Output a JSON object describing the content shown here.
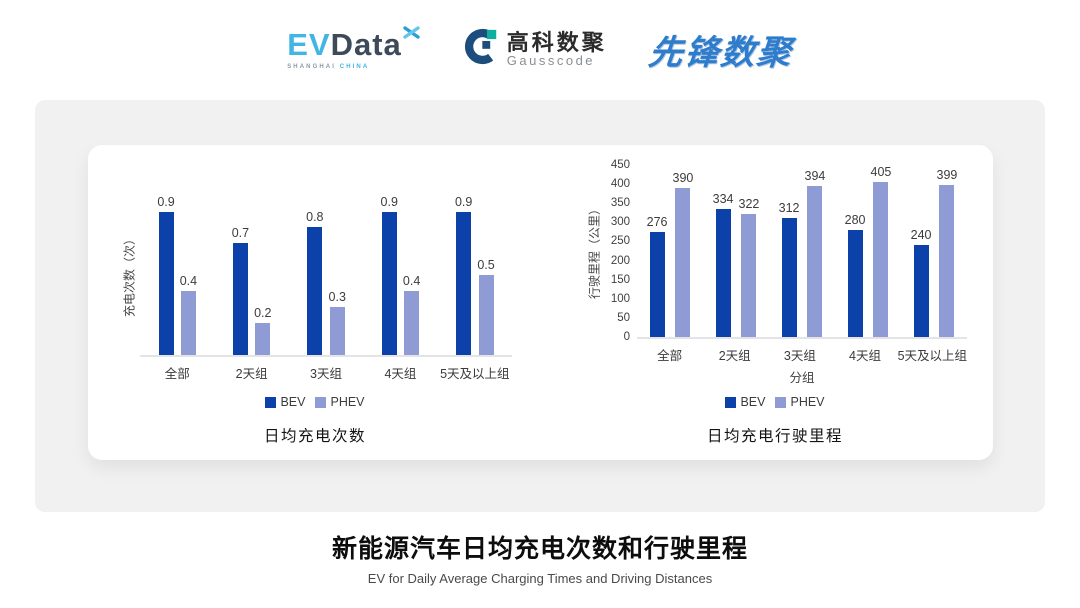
{
  "header": {
    "evdata": {
      "ev": "EV",
      "data": "Data",
      "tagline_left": "SHANGHAI",
      "tagline_right": "CHINA"
    },
    "gausscode": {
      "cn": "高科数聚",
      "en": "Gausscode"
    },
    "xianfeng": {
      "text": "先锋数聚"
    }
  },
  "chart_data": [
    {
      "type": "bar",
      "title": "日均充电次数",
      "xlabel": "",
      "ylabel": "充电次数（次）",
      "categories": [
        "全部",
        "2天组",
        "3天组",
        "4天组",
        "5天及以上组"
      ],
      "series": [
        {
          "name": "BEV",
          "color": "#0b41a8",
          "values": [
            0.9,
            0.7,
            0.8,
            0.9,
            0.9
          ]
        },
        {
          "name": "PHEV",
          "color": "#8e9bd5",
          "values": [
            0.4,
            0.2,
            0.3,
            0.4,
            0.5
          ]
        }
      ],
      "ylim": [
        0,
        1.0
      ],
      "yticks": [],
      "grid": false,
      "legend_position": "bottom"
    },
    {
      "type": "bar",
      "title": "日均充电行驶里程",
      "xlabel": "分组",
      "ylabel": "行驶里程（公里）",
      "categories": [
        "全部",
        "2天组",
        "3天组",
        "4天组",
        "5天及以上组"
      ],
      "series": [
        {
          "name": "BEV",
          "color": "#0b41a8",
          "values": [
            276,
            334,
            312,
            280,
            240
          ]
        },
        {
          "name": "PHEV",
          "color": "#8e9bd5",
          "values": [
            390,
            322,
            394,
            405,
            399
          ]
        }
      ],
      "ylim": [
        0,
        450
      ],
      "yticks": [
        0,
        50,
        100,
        150,
        200,
        250,
        300,
        350,
        400,
        450
      ],
      "grid": false,
      "legend_position": "bottom"
    }
  ],
  "footer": {
    "title": "新能源汽车日均充电次数和行驶里程",
    "subtitle": "EV for Daily Average Charging Times and Driving Distances"
  }
}
